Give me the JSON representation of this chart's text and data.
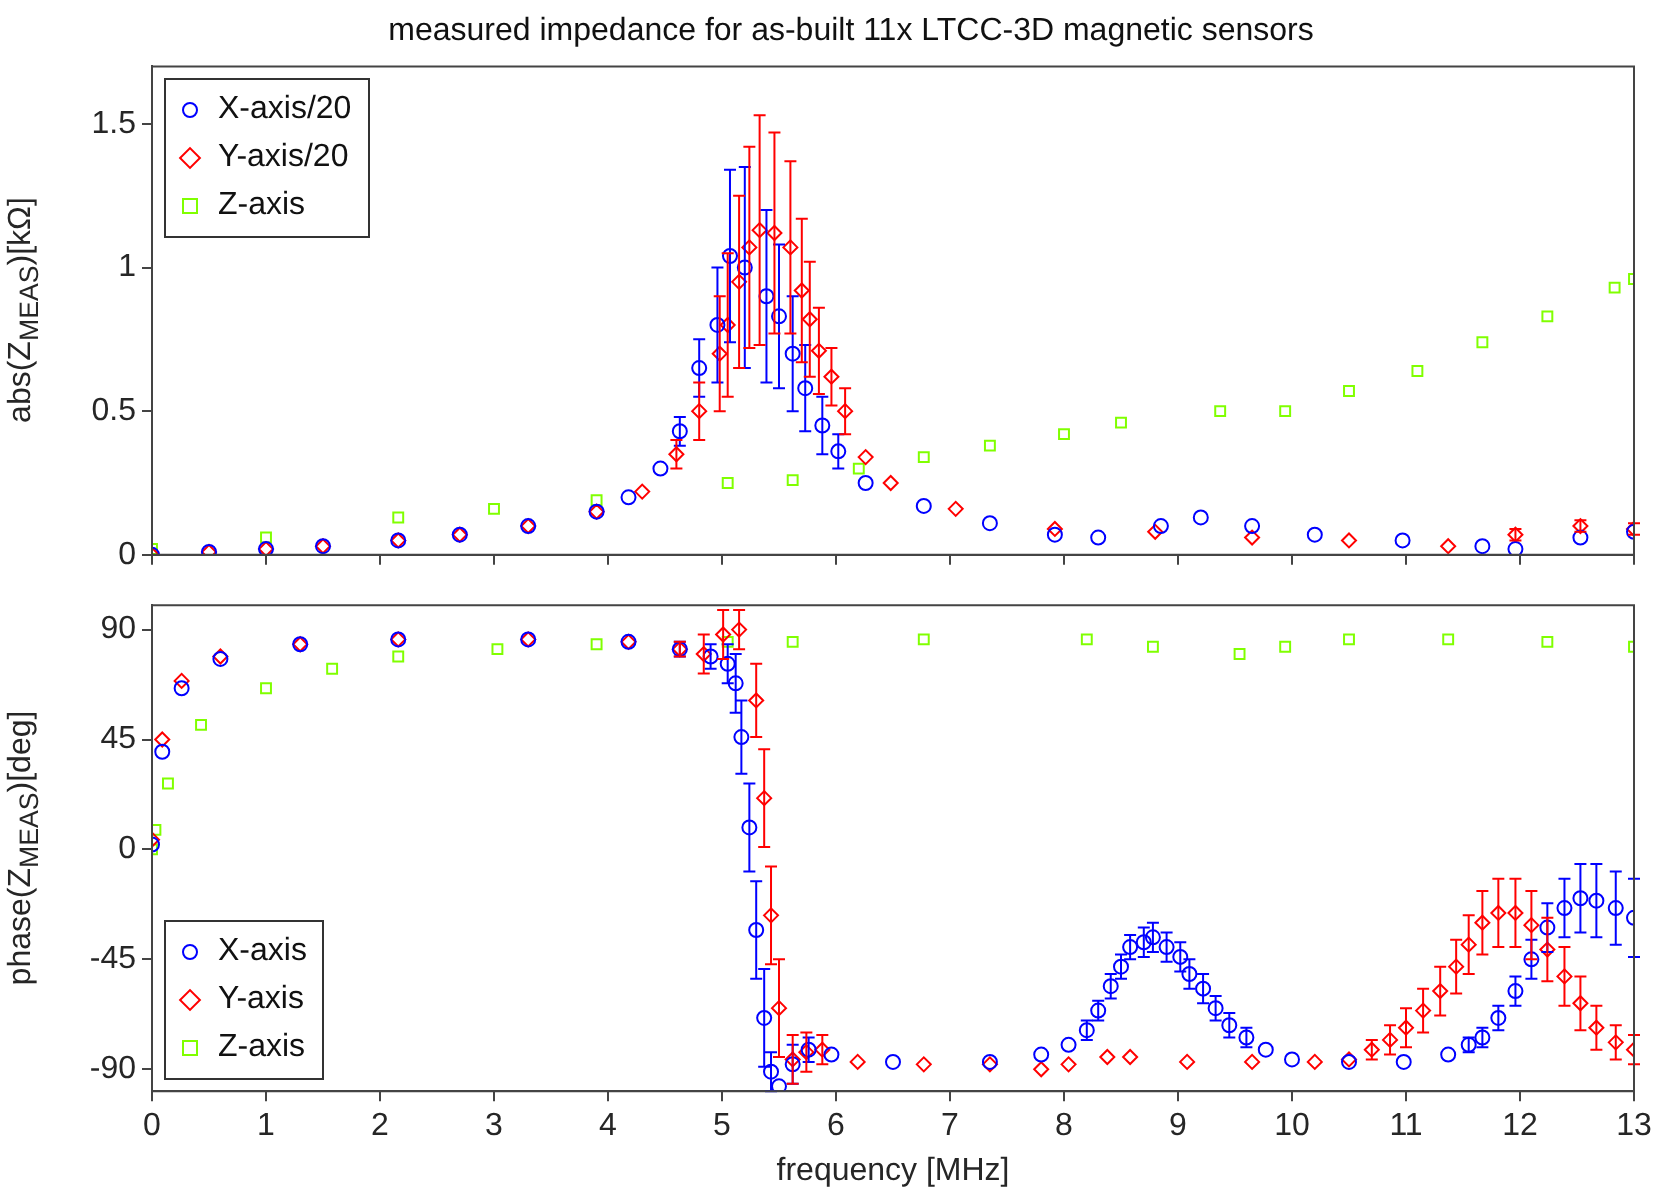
{
  "chart_data": [
    {
      "type": "scatter",
      "title": "measured impedance for as-built 11x LTCC-3D magnetic sensors",
      "ylabel": "abs(Z$_{MEAS}$)[kΩ]",
      "xlim": [
        0,
        13
      ],
      "xticks": [
        0,
        1,
        2,
        3,
        4,
        5,
        6,
        7,
        8,
        9,
        10,
        11,
        12,
        13
      ],
      "ylim": [
        0,
        1.7
      ],
      "yticks": [
        0,
        0.5,
        1,
        1.5
      ],
      "tick_labels": "y",
      "grid": false,
      "legend": "top left",
      "series": [
        {
          "name": "X-axis/20",
          "color": "#0000ff",
          "marker": "circle",
          "x": [
            0,
            0.5,
            1,
            1.5,
            2.16,
            2.7,
            3.3,
            3.9,
            4.18,
            4.46,
            4.63,
            4.8,
            4.96,
            5.07,
            5.2,
            5.39,
            5.5,
            5.62,
            5.73,
            5.88,
            6.02,
            6.26,
            6.77,
            7.35,
            7.92,
            8.3,
            8.85,
            9.2,
            9.65,
            10.2,
            10.97,
            11.67,
            11.96,
            12.53,
            13
          ],
          "values": [
            0,
            0.01,
            0.02,
            0.03,
            0.05,
            0.07,
            0.1,
            0.15,
            0.2,
            0.3,
            0.43,
            0.65,
            0.8,
            1.04,
            1.0,
            0.9,
            0.83,
            0.7,
            0.58,
            0.45,
            0.36,
            0.25,
            0.17,
            0.11,
            0.07,
            0.06,
            0.1,
            0.13,
            0.1,
            0.07,
            0.05,
            0.03,
            0.02,
            0.06,
            0.08
          ],
          "errors": [
            null,
            null,
            null,
            null,
            null,
            null,
            null,
            null,
            null,
            null,
            0.05,
            0.1,
            0.2,
            0.3,
            0.35,
            0.3,
            0.25,
            0.2,
            0.15,
            0.1,
            0.06,
            null,
            null,
            null,
            null,
            null,
            null,
            null,
            null,
            null,
            null,
            null,
            null,
            null,
            null
          ]
        },
        {
          "name": "Y-axis/20",
          "color": "#ff0000",
          "marker": "diamond",
          "x": [
            0,
            0.5,
            1,
            1.5,
            2.16,
            2.7,
            3.3,
            3.9,
            4.3,
            4.6,
            4.8,
            4.98,
            5.05,
            5.15,
            5.24,
            5.33,
            5.46,
            5.6,
            5.7,
            5.77,
            5.85,
            5.96,
            6.08,
            6.26,
            6.48,
            7.05,
            7.92,
            8.8,
            9.65,
            10.5,
            11.37,
            11.96,
            12.53,
            13
          ],
          "values": [
            0,
            0.01,
            0.02,
            0.03,
            0.05,
            0.07,
            0.1,
            0.15,
            0.22,
            0.35,
            0.5,
            0.7,
            0.8,
            0.95,
            1.07,
            1.13,
            1.12,
            1.07,
            0.92,
            0.82,
            0.71,
            0.62,
            0.5,
            0.34,
            0.25,
            0.16,
            0.09,
            0.08,
            0.06,
            0.05,
            0.03,
            0.07,
            0.1,
            0.09
          ],
          "errors": [
            null,
            null,
            null,
            null,
            null,
            null,
            null,
            null,
            null,
            0.05,
            0.1,
            0.2,
            0.25,
            0.3,
            0.35,
            0.4,
            0.35,
            0.3,
            0.25,
            0.2,
            0.15,
            0.1,
            0.08,
            null,
            null,
            null,
            null,
            null,
            null,
            null,
            null,
            0.02,
            0.02,
            0.02
          ]
        },
        {
          "name": "Z-axis",
          "color": "#80ff00",
          "marker": "square",
          "x": [
            0,
            1,
            2.16,
            3,
            3.9,
            5.05,
            5.62,
            6.2,
            6.77,
            7.35,
            8,
            8.5,
            9.37,
            9.94,
            10.5,
            11.1,
            11.67,
            12.24,
            12.83,
            13
          ],
          "values": [
            0.02,
            0.06,
            0.13,
            0.16,
            0.19,
            0.25,
            0.26,
            0.3,
            0.34,
            0.38,
            0.42,
            0.46,
            0.5,
            0.5,
            0.57,
            0.64,
            0.74,
            0.83,
            0.93,
            0.96
          ]
        }
      ]
    },
    {
      "type": "scatter",
      "xlabel": "frequency [MHz]",
      "ylabel": "phase(Z$_{MEAS}$)[deg]",
      "xlim": [
        0,
        13
      ],
      "xticks": [
        0,
        1,
        2,
        3,
        4,
        5,
        6,
        7,
        8,
        9,
        10,
        11,
        12,
        13
      ],
      "ylim": [
        -99,
        100
      ],
      "yticks": [
        -90,
        -45,
        0,
        45,
        90
      ],
      "grid": false,
      "legend": "bottom left",
      "series": [
        {
          "name": "X-axis",
          "color": "#0000ff",
          "marker": "circle",
          "x": [
            0,
            0.09,
            0.26,
            0.6,
            1.3,
            2.16,
            3.3,
            4.18,
            4.63,
            4.9,
            5.05,
            5.12,
            5.17,
            5.24,
            5.3,
            5.37,
            5.43,
            5.5,
            5.62,
            5.76,
            5.96,
            6.5,
            7.35,
            7.8,
            8.04,
            8.2,
            8.3,
            8.41,
            8.5,
            8.58,
            8.7,
            8.78,
            8.9,
            9.02,
            9.1,
            9.22,
            9.33,
            9.45,
            9.6,
            9.77,
            10.0,
            10.5,
            10.98,
            11.37,
            11.55,
            11.67,
            11.81,
            11.96,
            12.1,
            12.24,
            12.39,
            12.53,
            12.67,
            12.84,
            13
          ],
          "values": [
            2,
            40,
            66,
            78,
            84,
            86,
            86,
            85,
            82,
            79,
            76,
            68,
            46,
            9,
            -33,
            -69,
            -91,
            -97,
            -88,
            -82,
            -84,
            -87,
            -87,
            -84,
            -80,
            -74,
            -66,
            -56,
            -48,
            -40,
            -38,
            -36,
            -40,
            -44,
            -51,
            -57,
            -65,
            -72,
            -77,
            -82,
            -86,
            -87,
            -87,
            -84,
            -80,
            -77,
            -69,
            -58,
            -45,
            -32,
            -24,
            -20,
            -21,
            -24,
            -28
          ],
          "errors": [
            null,
            null,
            null,
            null,
            null,
            null,
            null,
            null,
            3,
            5,
            8,
            12,
            15,
            18,
            20,
            20,
            8,
            null,
            8,
            5,
            null,
            null,
            null,
            null,
            null,
            4,
            4,
            5,
            5,
            5,
            6,
            6,
            6,
            6,
            6,
            6,
            5,
            5,
            4,
            null,
            null,
            null,
            null,
            null,
            3,
            4,
            5,
            6,
            8,
            10,
            12,
            14,
            15,
            15,
            16
          ]
        },
        {
          "name": "Y-axis",
          "color": "#ff0000",
          "marker": "diamond",
          "x": [
            0,
            0.09,
            0.26,
            0.6,
            1.3,
            2.16,
            3.3,
            4.18,
            4.63,
            4.84,
            5.01,
            5.15,
            5.3,
            5.37,
            5.43,
            5.5,
            5.62,
            5.74,
            5.88,
            6.19,
            6.77,
            7.35,
            7.8,
            8.04,
            8.38,
            8.58,
            9.08,
            9.65,
            10.2,
            10.5,
            10.7,
            10.86,
            11.0,
            11.15,
            11.3,
            11.44,
            11.55,
            11.67,
            11.81,
            11.96,
            12.1,
            12.24,
            12.39,
            12.53,
            12.67,
            12.84,
            13
          ],
          "values": [
            4,
            45,
            69,
            79,
            84,
            86,
            86,
            85,
            82,
            80,
            88,
            90,
            61,
            21,
            -27,
            -65,
            -86,
            -83,
            -82,
            -87,
            -88,
            -88,
            -90,
            -88,
            -85,
            -85,
            -87,
            -87,
            -87,
            -86,
            -82,
            -78,
            -73,
            -66,
            -58,
            -48,
            -39,
            -30,
            -26,
            -26,
            -31,
            -41,
            -52,
            -63,
            -73,
            -79,
            -82
          ],
          "errors": [
            null,
            null,
            null,
            null,
            null,
            null,
            null,
            null,
            3,
            8,
            10,
            8,
            15,
            20,
            20,
            20,
            10,
            8,
            6,
            null,
            null,
            null,
            null,
            null,
            null,
            null,
            null,
            null,
            null,
            null,
            4,
            6,
            8,
            9,
            10,
            11,
            12,
            13,
            14,
            14,
            14,
            13,
            12,
            11,
            9,
            7,
            6
          ]
        },
        {
          "name": "Z-axis",
          "color": "#80ff00",
          "marker": "square",
          "x": [
            0,
            0.03,
            0.14,
            0.43,
            1.0,
            1.58,
            2.16,
            3.03,
            3.9,
            5.05,
            5.62,
            6.77,
            8.2,
            8.78,
            9.54,
            9.94,
            10.5,
            11.37,
            12.24,
            13
          ],
          "values": [
            0,
            8,
            27,
            51,
            66,
            74,
            79,
            82,
            84,
            85,
            85,
            86,
            86,
            83,
            80,
            83,
            86,
            86,
            85,
            83
          ]
        }
      ]
    }
  ]
}
